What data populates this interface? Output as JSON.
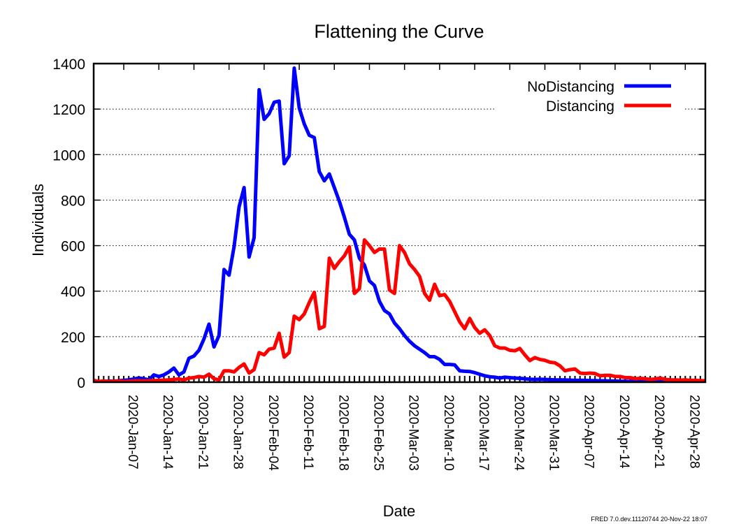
{
  "chart_data": {
    "type": "line",
    "title": "Flattening the Curve",
    "xlabel": "Date",
    "ylabel": "Individuals",
    "footer": "FRED 7.0.dev.11120744 20-Nov-22 18:07",
    "ylim": [
      0,
      1400
    ],
    "yticks": [
      0,
      200,
      400,
      600,
      800,
      1000,
      1200,
      1400
    ],
    "grid": true,
    "legend_position": "top-right",
    "x_start": "2020-Jan-01",
    "x_end": "2020-May-02",
    "xtick_labels": [
      "2020-Jan-07",
      "2020-Jan-14",
      "2020-Jan-21",
      "2020-Jan-28",
      "2020-Feb-04",
      "2020-Feb-11",
      "2020-Feb-18",
      "2020-Feb-25",
      "2020-Mar-03",
      "2020-Mar-10",
      "2020-Mar-17",
      "2020-Mar-24",
      "2020-Mar-31",
      "2020-Apr-07",
      "2020-Apr-14",
      "2020-Apr-21",
      "2020-Apr-28"
    ],
    "series": [
      {
        "name": "NoDistancing",
        "color": "#0000ff",
        "points": [
          [
            "2020-Jan-01",
            0
          ],
          [
            "2020-Jan-02",
            3
          ],
          [
            "2020-Jan-03",
            2
          ],
          [
            "2020-Jan-04",
            5
          ],
          [
            "2020-Jan-05",
            4
          ],
          [
            "2020-Jan-06",
            6
          ],
          [
            "2020-Jan-07",
            8
          ],
          [
            "2020-Jan-08",
            10
          ],
          [
            "2020-Jan-09",
            14
          ],
          [
            "2020-Jan-10",
            18
          ],
          [
            "2020-Jan-11",
            15
          ],
          [
            "2020-Jan-12",
            10
          ],
          [
            "2020-Jan-13",
            32
          ],
          [
            "2020-Jan-14",
            25
          ],
          [
            "2020-Jan-15",
            32
          ],
          [
            "2020-Jan-16",
            45
          ],
          [
            "2020-Jan-17",
            62
          ],
          [
            "2020-Jan-18",
            32
          ],
          [
            "2020-Jan-19",
            45
          ],
          [
            "2020-Jan-20",
            105
          ],
          [
            "2020-Jan-21",
            115
          ],
          [
            "2020-Jan-22",
            140
          ],
          [
            "2020-Jan-23",
            190
          ],
          [
            "2020-Jan-24",
            255
          ],
          [
            "2020-Jan-25",
            155
          ],
          [
            "2020-Jan-26",
            205
          ],
          [
            "2020-Jan-27",
            495
          ],
          [
            "2020-Jan-28",
            470
          ],
          [
            "2020-Jan-29",
            595
          ],
          [
            "2020-Jan-30",
            770
          ],
          [
            "2020-Jan-31",
            855
          ],
          [
            "2020-Feb-01",
            550
          ],
          [
            "2020-Feb-02",
            635
          ],
          [
            "2020-Feb-03",
            1285
          ],
          [
            "2020-Feb-04",
            1155
          ],
          [
            "2020-Feb-05",
            1180
          ],
          [
            "2020-Feb-06",
            1230
          ],
          [
            "2020-Feb-07",
            1235
          ],
          [
            "2020-Feb-08",
            960
          ],
          [
            "2020-Feb-09",
            995
          ],
          [
            "2020-Feb-10",
            1380
          ],
          [
            "2020-Feb-11",
            1205
          ],
          [
            "2020-Feb-12",
            1135
          ],
          [
            "2020-Feb-13",
            1085
          ],
          [
            "2020-Feb-14",
            1075
          ],
          [
            "2020-Feb-15",
            925
          ],
          [
            "2020-Feb-16",
            885
          ],
          [
            "2020-Feb-17",
            915
          ],
          [
            "2020-Feb-18",
            855
          ],
          [
            "2020-Feb-19",
            795
          ],
          [
            "2020-Feb-20",
            725
          ],
          [
            "2020-Feb-21",
            650
          ],
          [
            "2020-Feb-22",
            625
          ],
          [
            "2020-Feb-23",
            545
          ],
          [
            "2020-Feb-24",
            515
          ],
          [
            "2020-Feb-25",
            445
          ],
          [
            "2020-Feb-26",
            425
          ],
          [
            "2020-Feb-27",
            355
          ],
          [
            "2020-Feb-28",
            315
          ],
          [
            "2020-Feb-29",
            300
          ],
          [
            "2020-Mar-01",
            260
          ],
          [
            "2020-Mar-02",
            235
          ],
          [
            "2020-Mar-03",
            205
          ],
          [
            "2020-Mar-04",
            180
          ],
          [
            "2020-Mar-05",
            160
          ],
          [
            "2020-Mar-06",
            145
          ],
          [
            "2020-Mar-07",
            130
          ],
          [
            "2020-Mar-08",
            112
          ],
          [
            "2020-Mar-09",
            112
          ],
          [
            "2020-Mar-10",
            100
          ],
          [
            "2020-Mar-11",
            78
          ],
          [
            "2020-Mar-12",
            78
          ],
          [
            "2020-Mar-13",
            76
          ],
          [
            "2020-Mar-14",
            50
          ],
          [
            "2020-Mar-15",
            48
          ],
          [
            "2020-Mar-16",
            47
          ],
          [
            "2020-Mar-17",
            42
          ],
          [
            "2020-Mar-18",
            35
          ],
          [
            "2020-Mar-19",
            28
          ],
          [
            "2020-Mar-20",
            24
          ],
          [
            "2020-Mar-21",
            22
          ],
          [
            "2020-Mar-22",
            18
          ],
          [
            "2020-Mar-23",
            22
          ],
          [
            "2020-Mar-24",
            20
          ],
          [
            "2020-Mar-25",
            18
          ],
          [
            "2020-Mar-26",
            17
          ],
          [
            "2020-Mar-27",
            15
          ],
          [
            "2020-Mar-28",
            13
          ],
          [
            "2020-Mar-29",
            12
          ],
          [
            "2020-Mar-30",
            13
          ],
          [
            "2020-Mar-31",
            12
          ],
          [
            "2020-Apr-01",
            11
          ],
          [
            "2020-Apr-02",
            10
          ],
          [
            "2020-Apr-03",
            10
          ],
          [
            "2020-Apr-04",
            10
          ],
          [
            "2020-Apr-05",
            9
          ],
          [
            "2020-Apr-06",
            8
          ],
          [
            "2020-Apr-07",
            8
          ],
          [
            "2020-Apr-08",
            8
          ],
          [
            "2020-Apr-09",
            7
          ],
          [
            "2020-Apr-10",
            7
          ],
          [
            "2020-Apr-11",
            6
          ],
          [
            "2020-Apr-12",
            6
          ],
          [
            "2020-Apr-13",
            5
          ],
          [
            "2020-Apr-14",
            5
          ],
          [
            "2020-Apr-15",
            4
          ],
          [
            "2020-Apr-16",
            4
          ],
          [
            "2020-Apr-17",
            3
          ],
          [
            "2020-Apr-18",
            3
          ],
          [
            "2020-Apr-19",
            2
          ],
          [
            "2020-Apr-20",
            2
          ],
          [
            "2020-Apr-21",
            2
          ],
          [
            "2020-Apr-22",
            1
          ],
          [
            "2020-Apr-23",
            1
          ],
          [
            "2020-Apr-24",
            1
          ],
          [
            "2020-Apr-25",
            1
          ],
          [
            "2020-Apr-26",
            0
          ],
          [
            "2020-Apr-27",
            0
          ],
          [
            "2020-Apr-28",
            0
          ],
          [
            "2020-Apr-29",
            0
          ],
          [
            "2020-Apr-30",
            0
          ],
          [
            "2020-May-01",
            0
          ],
          [
            "2020-May-02",
            0
          ]
        ]
      },
      {
        "name": "Distancing",
        "color": "#ff0000",
        "points": [
          [
            "2020-Jan-01",
            8
          ],
          [
            "2020-Jan-02",
            3
          ],
          [
            "2020-Jan-03",
            5
          ],
          [
            "2020-Jan-04",
            3
          ],
          [
            "2020-Jan-05",
            4
          ],
          [
            "2020-Jan-06",
            5
          ],
          [
            "2020-Jan-07",
            3
          ],
          [
            "2020-Jan-08",
            4
          ],
          [
            "2020-Jan-09",
            5
          ],
          [
            "2020-Jan-10",
            6
          ],
          [
            "2020-Jan-11",
            5
          ],
          [
            "2020-Jan-12",
            6
          ],
          [
            "2020-Jan-13",
            7
          ],
          [
            "2020-Jan-14",
            8
          ],
          [
            "2020-Jan-15",
            9
          ],
          [
            "2020-Jan-16",
            10
          ],
          [
            "2020-Jan-17",
            12
          ],
          [
            "2020-Jan-18",
            14
          ],
          [
            "2020-Jan-19",
            10
          ],
          [
            "2020-Jan-20",
            18
          ],
          [
            "2020-Jan-21",
            20
          ],
          [
            "2020-Jan-22",
            25
          ],
          [
            "2020-Jan-23",
            22
          ],
          [
            "2020-Jan-24",
            35
          ],
          [
            "2020-Jan-25",
            15
          ],
          [
            "2020-Jan-26",
            10
          ],
          [
            "2020-Jan-27",
            50
          ],
          [
            "2020-Jan-28",
            50
          ],
          [
            "2020-Jan-29",
            45
          ],
          [
            "2020-Jan-30",
            65
          ],
          [
            "2020-Jan-31",
            80
          ],
          [
            "2020-Feb-01",
            40
          ],
          [
            "2020-Feb-02",
            55
          ],
          [
            "2020-Feb-03",
            130
          ],
          [
            "2020-Feb-04",
            120
          ],
          [
            "2020-Feb-05",
            145
          ],
          [
            "2020-Feb-06",
            150
          ],
          [
            "2020-Feb-07",
            215
          ],
          [
            "2020-Feb-08",
            110
          ],
          [
            "2020-Feb-09",
            130
          ],
          [
            "2020-Feb-10",
            290
          ],
          [
            "2020-Feb-11",
            275
          ],
          [
            "2020-Feb-12",
            300
          ],
          [
            "2020-Feb-13",
            350
          ],
          [
            "2020-Feb-14",
            395
          ],
          [
            "2020-Feb-15",
            235
          ],
          [
            "2020-Feb-16",
            245
          ],
          [
            "2020-Feb-17",
            545
          ],
          [
            "2020-Feb-18",
            500
          ],
          [
            "2020-Feb-19",
            530
          ],
          [
            "2020-Feb-20",
            555
          ],
          [
            "2020-Feb-21",
            595
          ],
          [
            "2020-Feb-22",
            390
          ],
          [
            "2020-Feb-23",
            410
          ],
          [
            "2020-Feb-24",
            625
          ],
          [
            "2020-Feb-25",
            600
          ],
          [
            "2020-Feb-26",
            570
          ],
          [
            "2020-Feb-27",
            585
          ],
          [
            "2020-Feb-28",
            585
          ],
          [
            "2020-Feb-29",
            405
          ],
          [
            "2020-Mar-01",
            390
          ],
          [
            "2020-Mar-02",
            600
          ],
          [
            "2020-Mar-03",
            570
          ],
          [
            "2020-Mar-04",
            520
          ],
          [
            "2020-Mar-05",
            495
          ],
          [
            "2020-Mar-06",
            465
          ],
          [
            "2020-Mar-07",
            390
          ],
          [
            "2020-Mar-08",
            360
          ],
          [
            "2020-Mar-09",
            430
          ],
          [
            "2020-Mar-10",
            380
          ],
          [
            "2020-Mar-11",
            385
          ],
          [
            "2020-Mar-12",
            355
          ],
          [
            "2020-Mar-13",
            310
          ],
          [
            "2020-Mar-14",
            265
          ],
          [
            "2020-Mar-15",
            235
          ],
          [
            "2020-Mar-16",
            280
          ],
          [
            "2020-Mar-17",
            240
          ],
          [
            "2020-Mar-18",
            215
          ],
          [
            "2020-Mar-19",
            230
          ],
          [
            "2020-Mar-20",
            205
          ],
          [
            "2020-Mar-21",
            160
          ],
          [
            "2020-Mar-22",
            150
          ],
          [
            "2020-Mar-23",
            150
          ],
          [
            "2020-Mar-24",
            140
          ],
          [
            "2020-Mar-25",
            138
          ],
          [
            "2020-Mar-26",
            148
          ],
          [
            "2020-Mar-27",
            120
          ],
          [
            "2020-Mar-28",
            95
          ],
          [
            "2020-Mar-29",
            108
          ],
          [
            "2020-Mar-30",
            100
          ],
          [
            "2020-Mar-31",
            96
          ],
          [
            "2020-Apr-01",
            88
          ],
          [
            "2020-Apr-02",
            85
          ],
          [
            "2020-Apr-03",
            72
          ],
          [
            "2020-Apr-04",
            50
          ],
          [
            "2020-Apr-05",
            55
          ],
          [
            "2020-Apr-06",
            58
          ],
          [
            "2020-Apr-07",
            40
          ],
          [
            "2020-Apr-08",
            38
          ],
          [
            "2020-Apr-09",
            40
          ],
          [
            "2020-Apr-10",
            38
          ],
          [
            "2020-Apr-11",
            28
          ],
          [
            "2020-Apr-12",
            30
          ],
          [
            "2020-Apr-13",
            30
          ],
          [
            "2020-Apr-14",
            25
          ],
          [
            "2020-Apr-15",
            25
          ],
          [
            "2020-Apr-16",
            20
          ],
          [
            "2020-Apr-17",
            20
          ],
          [
            "2020-Apr-18",
            15
          ],
          [
            "2020-Apr-19",
            17
          ],
          [
            "2020-Apr-20",
            15
          ],
          [
            "2020-Apr-21",
            12
          ],
          [
            "2020-Apr-22",
            14
          ],
          [
            "2020-Apr-23",
            18
          ],
          [
            "2020-Apr-24",
            12
          ],
          [
            "2020-Apr-25",
            10
          ],
          [
            "2020-Apr-26",
            10
          ],
          [
            "2020-Apr-27",
            9
          ],
          [
            "2020-Apr-28",
            10
          ],
          [
            "2020-Apr-29",
            8
          ],
          [
            "2020-Apr-30",
            8
          ],
          [
            "2020-May-01",
            7
          ],
          [
            "2020-May-02",
            6
          ]
        ]
      }
    ]
  }
}
